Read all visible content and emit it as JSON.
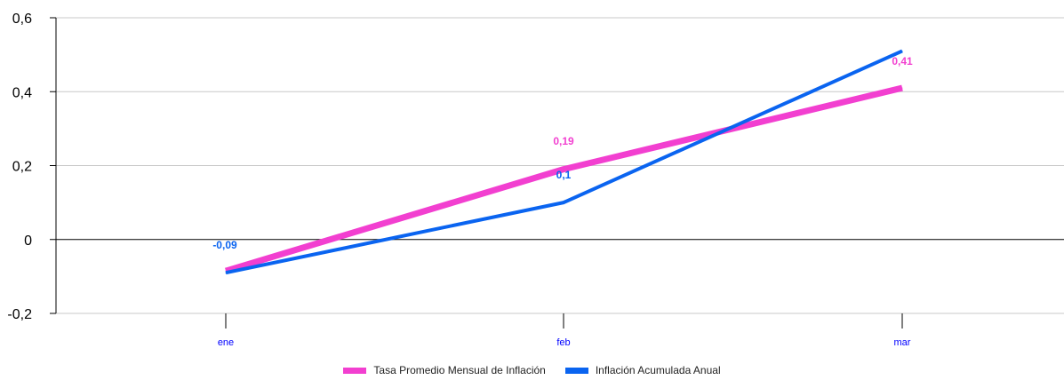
{
  "chart_data": {
    "type": "line",
    "categories": [
      "ene",
      "feb",
      "mar"
    ],
    "ylim": [
      -0.2,
      0.6
    ],
    "yticks": [
      "-0,2",
      "0",
      "0,2",
      "0,4",
      "0,6"
    ],
    "ytick_values": [
      -0.2,
      0,
      0.2,
      0.4,
      0.6
    ],
    "grid": true,
    "legend_position": "bottom",
    "series": [
      {
        "name": "Tasa Promedio Mensual de Inflación",
        "values": [
          -0.085,
          0.19,
          0.41
        ],
        "labels": [
          "",
          "0,19",
          "0,41"
        ],
        "color": "#f23fd0"
      },
      {
        "name": "Inflación Acumulada Anual",
        "values": [
          -0.09,
          0.1,
          0.51
        ],
        "labels": [
          "-0,09",
          "0,1",
          ""
        ],
        "color": "#0a64f0"
      }
    ]
  }
}
